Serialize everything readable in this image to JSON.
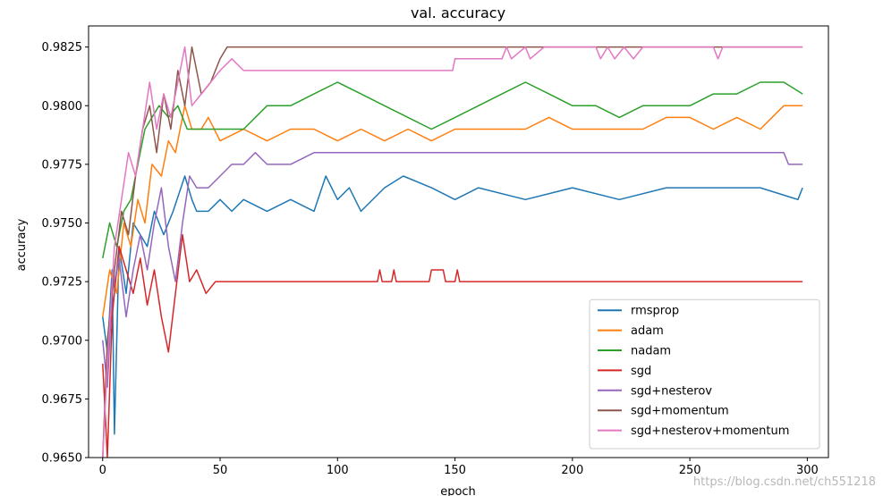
{
  "watermark": "https://blog.csdn.net/ch551218",
  "chart_data": {
    "type": "line",
    "title": "val. accuracy",
    "xlabel": "epoch",
    "ylabel": "accuracy",
    "xlim": [
      -6,
      309
    ],
    "ylim": [
      0.965,
      0.9834
    ],
    "xticks": [
      0,
      50,
      100,
      150,
      200,
      250,
      300
    ],
    "yticks": [
      0.965,
      0.9675,
      0.97,
      0.9725,
      0.975,
      0.9775,
      0.98,
      0.9825
    ],
    "ytick_labels": [
      "0.9650",
      "0.9675",
      "0.9700",
      "0.9725",
      "0.9750",
      "0.9775",
      "0.9800",
      "0.9825"
    ],
    "grid": false,
    "legend_position": "lower-right",
    "series": [
      {
        "name": "rmsprop",
        "color": "#1f77b4",
        "points": [
          [
            0,
            0.971
          ],
          [
            2,
            0.9695
          ],
          [
            4,
            0.973
          ],
          [
            5,
            0.966
          ],
          [
            7,
            0.974
          ],
          [
            10,
            0.972
          ],
          [
            13,
            0.975
          ],
          [
            16,
            0.9745
          ],
          [
            19,
            0.974
          ],
          [
            22,
            0.9755
          ],
          [
            26,
            0.9745
          ],
          [
            30,
            0.9755
          ],
          [
            35,
            0.977
          ],
          [
            38,
            0.976
          ],
          [
            40,
            0.9755
          ],
          [
            45,
            0.9755
          ],
          [
            50,
            0.976
          ],
          [
            55,
            0.9755
          ],
          [
            60,
            0.976
          ],
          [
            70,
            0.9755
          ],
          [
            80,
            0.976
          ],
          [
            90,
            0.9755
          ],
          [
            95,
            0.977
          ],
          [
            100,
            0.976
          ],
          [
            105,
            0.9765
          ],
          [
            110,
            0.9755
          ],
          [
            120,
            0.9765
          ],
          [
            128,
            0.977
          ],
          [
            140,
            0.9765
          ],
          [
            150,
            0.976
          ],
          [
            160,
            0.9765
          ],
          [
            180,
            0.976
          ],
          [
            200,
            0.9765
          ],
          [
            220,
            0.976
          ],
          [
            240,
            0.9765
          ],
          [
            260,
            0.9765
          ],
          [
            280,
            0.9765
          ],
          [
            296,
            0.976
          ],
          [
            298,
            0.9765
          ]
        ]
      },
      {
        "name": "adam",
        "color": "#ff7f0e",
        "points": [
          [
            0,
            0.971
          ],
          [
            3,
            0.973
          ],
          [
            6,
            0.972
          ],
          [
            9,
            0.975
          ],
          [
            12,
            0.974
          ],
          [
            15,
            0.976
          ],
          [
            18,
            0.975
          ],
          [
            21,
            0.9775
          ],
          [
            25,
            0.977
          ],
          [
            28,
            0.9785
          ],
          [
            31,
            0.978
          ],
          [
            35,
            0.98
          ],
          [
            38,
            0.979
          ],
          [
            42,
            0.979
          ],
          [
            45,
            0.9795
          ],
          [
            50,
            0.9785
          ],
          [
            60,
            0.979
          ],
          [
            70,
            0.9785
          ],
          [
            80,
            0.979
          ],
          [
            90,
            0.979
          ],
          [
            100,
            0.9785
          ],
          [
            110,
            0.979
          ],
          [
            120,
            0.9785
          ],
          [
            130,
            0.979
          ],
          [
            140,
            0.9785
          ],
          [
            150,
            0.979
          ],
          [
            160,
            0.979
          ],
          [
            170,
            0.979
          ],
          [
            180,
            0.979
          ],
          [
            190,
            0.9795
          ],
          [
            200,
            0.979
          ],
          [
            210,
            0.979
          ],
          [
            220,
            0.979
          ],
          [
            230,
            0.979
          ],
          [
            240,
            0.9795
          ],
          [
            250,
            0.9795
          ],
          [
            260,
            0.979
          ],
          [
            270,
            0.9795
          ],
          [
            280,
            0.979
          ],
          [
            290,
            0.98
          ],
          [
            298,
            0.98
          ]
        ]
      },
      {
        "name": "nadam",
        "color": "#2ca02c",
        "points": [
          [
            0,
            0.9735
          ],
          [
            3,
            0.975
          ],
          [
            6,
            0.974
          ],
          [
            9,
            0.9755
          ],
          [
            12,
            0.976
          ],
          [
            15,
            0.9775
          ],
          [
            18,
            0.979
          ],
          [
            21,
            0.9795
          ],
          [
            24,
            0.98
          ],
          [
            28,
            0.9795
          ],
          [
            32,
            0.98
          ],
          [
            36,
            0.979
          ],
          [
            40,
            0.979
          ],
          [
            50,
            0.979
          ],
          [
            60,
            0.979
          ],
          [
            70,
            0.98
          ],
          [
            80,
            0.98
          ],
          [
            90,
            0.9805
          ],
          [
            100,
            0.981
          ],
          [
            110,
            0.9805
          ],
          [
            120,
            0.98
          ],
          [
            130,
            0.9795
          ],
          [
            140,
            0.979
          ],
          [
            150,
            0.9795
          ],
          [
            160,
            0.98
          ],
          [
            170,
            0.9805
          ],
          [
            180,
            0.981
          ],
          [
            190,
            0.9805
          ],
          [
            200,
            0.98
          ],
          [
            210,
            0.98
          ],
          [
            220,
            0.9795
          ],
          [
            230,
            0.98
          ],
          [
            240,
            0.98
          ],
          [
            250,
            0.98
          ],
          [
            260,
            0.9805
          ],
          [
            270,
            0.9805
          ],
          [
            280,
            0.981
          ],
          [
            290,
            0.981
          ],
          [
            298,
            0.9805
          ]
        ]
      },
      {
        "name": "sgd",
        "color": "#d62728",
        "points": [
          [
            0,
            0.969
          ],
          [
            2,
            0.965
          ],
          [
            4,
            0.971
          ],
          [
            7,
            0.974
          ],
          [
            10,
            0.973
          ],
          [
            13,
            0.972
          ],
          [
            16,
            0.9735
          ],
          [
            19,
            0.9715
          ],
          [
            22,
            0.973
          ],
          [
            25,
            0.971
          ],
          [
            28,
            0.9695
          ],
          [
            31,
            0.972
          ],
          [
            34,
            0.9745
          ],
          [
            37,
            0.9725
          ],
          [
            40,
            0.973
          ],
          [
            44,
            0.972
          ],
          [
            48,
            0.9725
          ],
          [
            60,
            0.9725
          ],
          [
            80,
            0.9725
          ],
          [
            100,
            0.9725
          ],
          [
            117,
            0.9725
          ],
          [
            118,
            0.973
          ],
          [
            119,
            0.9725
          ],
          [
            123,
            0.9725
          ],
          [
            124,
            0.973
          ],
          [
            125,
            0.9725
          ],
          [
            139,
            0.9725
          ],
          [
            140,
            0.973
          ],
          [
            145,
            0.973
          ],
          [
            146,
            0.9725
          ],
          [
            150,
            0.9725
          ],
          [
            151,
            0.973
          ],
          [
            152,
            0.9725
          ],
          [
            200,
            0.9725
          ],
          [
            250,
            0.9725
          ],
          [
            298,
            0.9725
          ]
        ]
      },
      {
        "name": "sgd+nesterov",
        "color": "#9467bd",
        "points": [
          [
            0,
            0.97
          ],
          [
            2,
            0.968
          ],
          [
            4,
            0.972
          ],
          [
            7,
            0.9735
          ],
          [
            10,
            0.971
          ],
          [
            13,
            0.973
          ],
          [
            16,
            0.9745
          ],
          [
            19,
            0.973
          ],
          [
            22,
            0.975
          ],
          [
            25,
            0.9765
          ],
          [
            28,
            0.974
          ],
          [
            31,
            0.9725
          ],
          [
            34,
            0.975
          ],
          [
            37,
            0.977
          ],
          [
            40,
            0.9765
          ],
          [
            45,
            0.9765
          ],
          [
            50,
            0.977
          ],
          [
            55,
            0.9775
          ],
          [
            60,
            0.9775
          ],
          [
            65,
            0.978
          ],
          [
            70,
            0.9775
          ],
          [
            80,
            0.9775
          ],
          [
            90,
            0.978
          ],
          [
            100,
            0.978
          ],
          [
            120,
            0.978
          ],
          [
            150,
            0.978
          ],
          [
            200,
            0.978
          ],
          [
            250,
            0.978
          ],
          [
            290,
            0.978
          ],
          [
            292,
            0.9775
          ],
          [
            298,
            0.9775
          ]
        ]
      },
      {
        "name": "sgd+momentum",
        "color": "#8c564b",
        "points": [
          [
            0,
            0.965
          ],
          [
            2,
            0.97
          ],
          [
            5,
            0.973
          ],
          [
            8,
            0.9755
          ],
          [
            11,
            0.9745
          ],
          [
            14,
            0.977
          ],
          [
            17,
            0.979
          ],
          [
            20,
            0.98
          ],
          [
            23,
            0.978
          ],
          [
            26,
            0.9805
          ],
          [
            29,
            0.979
          ],
          [
            32,
            0.9815
          ],
          [
            35,
            0.98
          ],
          [
            38,
            0.9825
          ],
          [
            42,
            0.9805
          ],
          [
            46,
            0.981
          ],
          [
            50,
            0.982
          ],
          [
            53,
            0.9825
          ],
          [
            60,
            0.9825
          ],
          [
            100,
            0.9825
          ],
          [
            150,
            0.9825
          ],
          [
            200,
            0.9825
          ],
          [
            250,
            0.9825
          ],
          [
            298,
            0.9825
          ]
        ]
      },
      {
        "name": "sgd+nesterov+momentum",
        "color": "#e377c2",
        "points": [
          [
            0,
            0.965
          ],
          [
            2,
            0.969
          ],
          [
            5,
            0.974
          ],
          [
            8,
            0.976
          ],
          [
            11,
            0.978
          ],
          [
            14,
            0.977
          ],
          [
            17,
            0.979
          ],
          [
            20,
            0.981
          ],
          [
            23,
            0.979
          ],
          [
            26,
            0.9805
          ],
          [
            29,
            0.9795
          ],
          [
            32,
            0.981
          ],
          [
            35,
            0.9825
          ],
          [
            38,
            0.98
          ],
          [
            42,
            0.9805
          ],
          [
            46,
            0.981
          ],
          [
            50,
            0.9815
          ],
          [
            55,
            0.982
          ],
          [
            60,
            0.9815
          ],
          [
            80,
            0.9815
          ],
          [
            100,
            0.9815
          ],
          [
            130,
            0.9815
          ],
          [
            149,
            0.9815
          ],
          [
            150,
            0.982
          ],
          [
            170,
            0.982
          ],
          [
            172,
            0.9825
          ],
          [
            174,
            0.982
          ],
          [
            180,
            0.9825
          ],
          [
            182,
            0.982
          ],
          [
            188,
            0.9825
          ],
          [
            192,
            0.9825
          ],
          [
            200,
            0.9825
          ],
          [
            210,
            0.9825
          ],
          [
            212,
            0.982
          ],
          [
            215,
            0.9825
          ],
          [
            218,
            0.982
          ],
          [
            222,
            0.9825
          ],
          [
            226,
            0.982
          ],
          [
            230,
            0.9825
          ],
          [
            235,
            0.9825
          ],
          [
            250,
            0.9825
          ],
          [
            260,
            0.9825
          ],
          [
            262,
            0.982
          ],
          [
            264,
            0.9825
          ],
          [
            280,
            0.9825
          ],
          [
            298,
            0.9825
          ]
        ]
      }
    ]
  }
}
